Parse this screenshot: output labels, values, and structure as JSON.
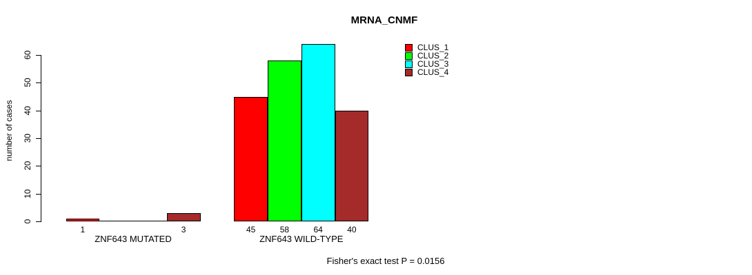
{
  "chart_data": {
    "type": "bar",
    "title": "MRNA_CNMF",
    "ylabel": "number of cases",
    "xlabel": "",
    "ylim": [
      0,
      60
    ],
    "yticks": [
      0,
      10,
      20,
      30,
      40,
      50,
      60
    ],
    "grid": false,
    "legend_position": "top-right",
    "categories": [
      "ZNF643 MUTATED",
      "ZNF643 WILD-TYPE"
    ],
    "series": [
      {
        "name": "CLUS_1",
        "color": "#ff0000",
        "values": [
          1,
          45
        ]
      },
      {
        "name": "CLUS_2",
        "color": "#00ff00",
        "values": [
          0,
          58
        ]
      },
      {
        "name": "CLUS_3",
        "color": "#00ffff",
        "values": [
          0,
          64
        ]
      },
      {
        "name": "CLUS_4",
        "color": "#a52a2a",
        "values": [
          3,
          40
        ]
      }
    ],
    "bar_labels": [
      [
        "1",
        "",
        "",
        "3"
      ],
      [
        "45",
        "58",
        "64",
        "40"
      ]
    ],
    "annotation": "Fisher's exact test P = 0.0156",
    "axis_color": "#000000",
    "background_color": "#ffffff"
  }
}
